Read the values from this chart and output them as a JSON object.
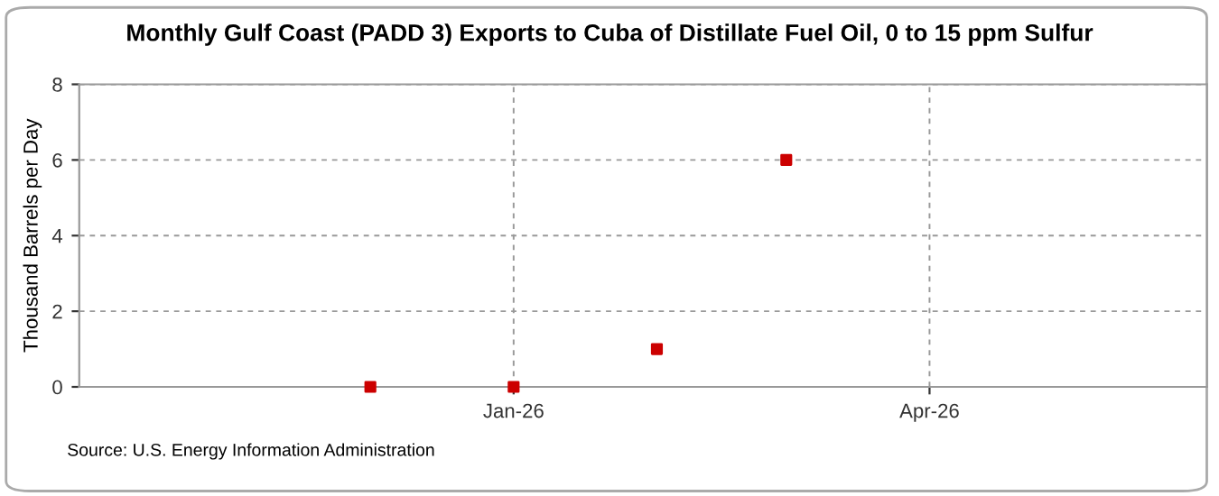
{
  "chart_data": {
    "type": "scatter",
    "title": "Monthly Gulf Coast (PADD 3) Exports to Cuba of Distillate Fuel Oil, 0 to 15 ppm Sulfur",
    "ylabel": "Thousand Barrels per Day",
    "x": [
      "2025-12-01",
      "2026-01-01",
      "2026-02-01",
      "2026-03-01"
    ],
    "series": [
      {
        "color": "#cc0000",
        "values": [
          0,
          0,
          1,
          6
        ]
      }
    ],
    "marker": "square",
    "xlim": [
      "2025-09-29",
      "2026-05-31"
    ],
    "xticks": [
      {
        "value": "2026-01-01",
        "label": "Jan-26"
      },
      {
        "value": "2026-04-01",
        "label": "Apr-26"
      }
    ],
    "ylim": [
      0,
      8
    ],
    "yticks": [
      0,
      2,
      4,
      6,
      8
    ],
    "grid": true,
    "annotations": [
      "Source: U.S. Energy Information Administration"
    ]
  }
}
